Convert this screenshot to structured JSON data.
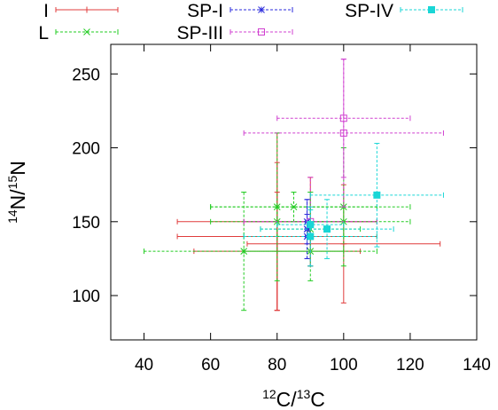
{
  "chart_data": {
    "type": "scatter",
    "title": "",
    "xlabel": {
      "base": "C",
      "sup": "12",
      "sep": "/",
      "sup2": "13",
      "base2": "C"
    },
    "ylabel": {
      "sup": "14",
      "base": "N",
      "sep": "/",
      "sup2": "15",
      "base2": "N"
    },
    "xlim": [
      30,
      140
    ],
    "ylim": [
      70,
      270
    ],
    "xticks": [
      "40",
      "60",
      "80",
      "100",
      "120",
      "140"
    ],
    "yticks": [
      "100",
      "150",
      "200",
      "250"
    ],
    "legend_position": "top, outside plot",
    "series": [
      {
        "name": "I",
        "color": "#e03c3c",
        "marker": "plus",
        "points": [
          {
            "x": 80,
            "y": 150,
            "xerr": 30,
            "yerr": 60
          },
          {
            "x": 100,
            "y": 135,
            "xerr": 29,
            "yerr": 40
          },
          {
            "x": 80,
            "y": 130,
            "xerr": 25,
            "yerr": 40
          },
          {
            "x": 90,
            "y": 150,
            "xerr": 20,
            "yerr": 30
          },
          {
            "x": 80,
            "y": 140,
            "xerr": 30,
            "yerr": 50
          }
        ]
      },
      {
        "name": "L",
        "color": "#22cc22",
        "marker": "x",
        "points": [
          {
            "x": 70,
            "y": 130,
            "xerr": 30,
            "yerr": 40
          },
          {
            "x": 80,
            "y": 160,
            "xerr": 20,
            "yerr": 50
          },
          {
            "x": 85,
            "y": 160,
            "xerr": 25,
            "yerr": 10
          },
          {
            "x": 90,
            "y": 140,
            "xerr": 20,
            "yerr": 30
          },
          {
            "x": 90,
            "y": 130,
            "xerr": 20,
            "yerr": 10
          },
          {
            "x": 100,
            "y": 150,
            "xerr": 20,
            "yerr": 10
          },
          {
            "x": 100,
            "y": 160,
            "xerr": 20,
            "yerr": 40
          },
          {
            "x": 80,
            "y": 150,
            "xerr": 20,
            "yerr": 10
          },
          {
            "x": 90,
            "y": 145,
            "xerr": 15,
            "yerr": 25
          }
        ]
      },
      {
        "name": "SP-I",
        "color": "#2a2adc",
        "marker": "star",
        "points": [
          {
            "x": 89,
            "y": 150,
            "xerr": 0.5,
            "yerr": 15
          },
          {
            "x": 89,
            "y": 145,
            "xerr": 0.5,
            "yerr": 20
          },
          {
            "x": 89,
            "y": 140,
            "xerr": 0.5,
            "yerr": 15
          }
        ]
      },
      {
        "name": "SP-III",
        "color": "#d040d0",
        "marker": "square",
        "points": [
          {
            "x": 100,
            "y": 220,
            "xerr": 20,
            "yerr": 40
          },
          {
            "x": 100,
            "y": 210,
            "xerr": 30,
            "yerr": 50
          },
          {
            "x": 90,
            "y": 150,
            "xerr": 20,
            "yerr": 30
          }
        ]
      },
      {
        "name": "SP-IV",
        "color": "#19d6d6",
        "marker": "filledsquare",
        "points": [
          {
            "x": 110,
            "y": 168,
            "xerr": 20,
            "yerr": 35
          },
          {
            "x": 95,
            "y": 145,
            "xerr": 20,
            "yerr": 20
          },
          {
            "x": 90,
            "y": 140,
            "xerr": 20,
            "yerr": 20
          },
          {
            "x": 90,
            "y": 148,
            "xerr": 10,
            "yerr": 10
          }
        ]
      }
    ]
  }
}
